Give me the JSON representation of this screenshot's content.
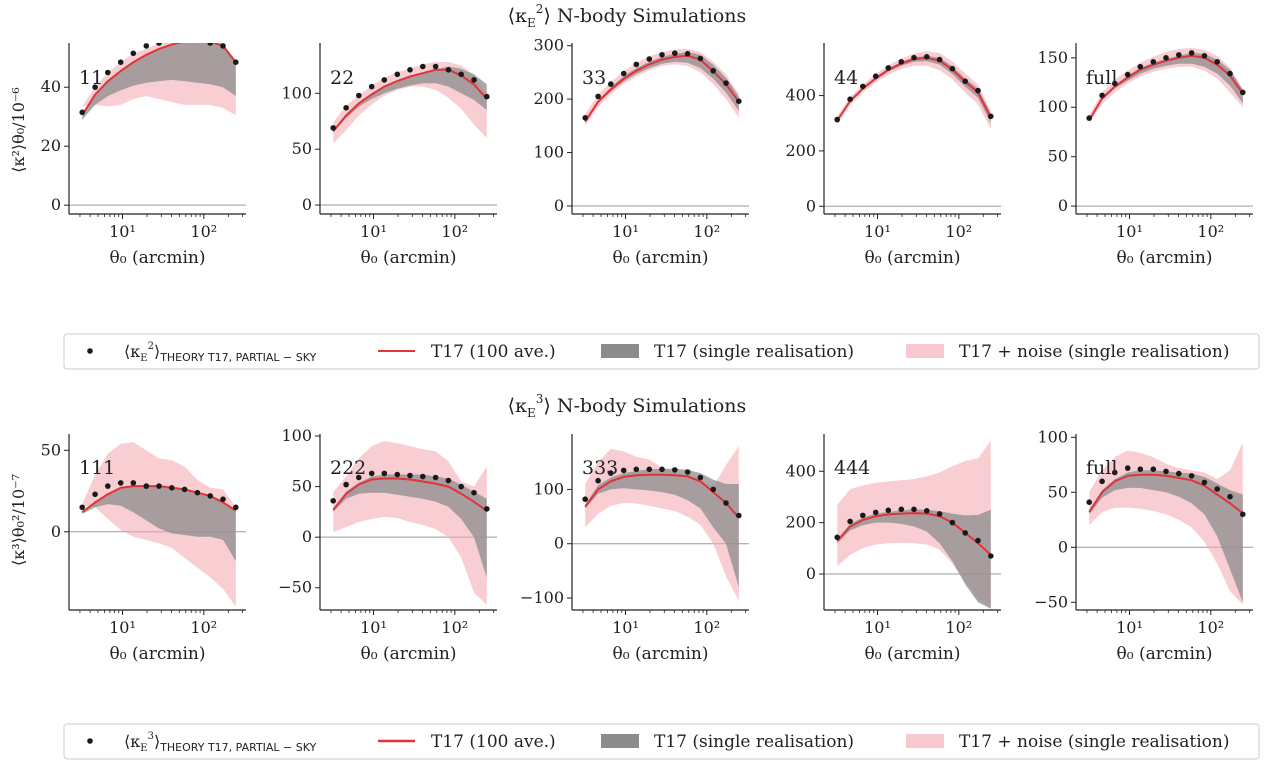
{
  "figure": {
    "rows": [
      {
        "title": "⟨κ_E²⟩  N-body Simulations",
        "title_main": "⟨κ",
        "title_sub": "E",
        "title_sup": "2",
        "title_rest": "⟩  N-body Simulations",
        "ylabel": "⟨κ²⟩θ₀/10⁻⁶",
        "legend": {
          "theory": "⟨κ_E²⟩THEORY T17, PARTIAL−SKY",
          "theory_label_parts": [
            "⟨κ",
            "E",
            "2",
            "⟩",
            "THEORY T17, PARTIAL − SKY"
          ],
          "mean": "T17 (100 ave.)",
          "single": "T17 (single realisation)",
          "noise": "T17 + noise (single realisation)"
        }
      },
      {
        "title": "⟨κ_E³⟩  N-body Simulations",
        "title_main": "⟨κ",
        "title_sub": "E",
        "title_sup": "3",
        "title_rest": "⟩  N-body Simulations",
        "ylabel": "⟨κ³⟩θ₀²/10⁻⁷",
        "legend": {
          "theory": "⟨κ_E³⟩THEORY T17, PARTIAL−SKY",
          "theory_label_parts": [
            "⟨κ",
            "E",
            "3",
            "⟩",
            "THEORY T17, PARTIAL − SKY"
          ],
          "mean": "T17 (100 ave.)",
          "single": "T17 (single realisation)",
          "noise": "T17 + noise (single realisation)"
        }
      }
    ],
    "xlabel": "θ₀ (arcmin)",
    "xtick_labels": [
      "10¹",
      "10²"
    ],
    "colors": {
      "mean_line": "#e0343a",
      "single_band": "#8c8c8c",
      "noise_band": "#f4a5ae",
      "theory_points": "#1a1a1a",
      "zero_line": "#9a9a9a"
    }
  },
  "chart_data": [
    {
      "type": "area",
      "row": 0,
      "panel": "11",
      "x": [
        3.2,
        4.6,
        6.6,
        9.5,
        13.6,
        19.6,
        28.1,
        40.4,
        58,
        83.3,
        119.7,
        172,
        247
      ],
      "x_scale": "log",
      "xlim": [
        2.2,
        330
      ],
      "ylim": [
        -3,
        55
      ],
      "yticks": [
        0,
        20,
        40
      ],
      "theory": [
        31.5,
        40,
        45,
        48.5,
        51.5,
        54,
        55,
        56.2,
        56.5,
        56.4,
        55,
        54,
        48.5
      ],
      "mean": [
        30.5,
        37.5,
        42,
        45.5,
        48.5,
        51,
        53,
        54.5,
        55.5,
        56,
        55.5,
        54,
        48.5
      ],
      "single_lo": [
        29,
        34,
        37,
        39,
        40.5,
        41.5,
        42,
        42.5,
        42,
        41.5,
        41,
        40,
        37
      ],
      "single_hi": [
        30,
        37.5,
        42,
        45.5,
        48.5,
        51,
        53,
        54.5,
        55.5,
        56,
        55.5,
        54,
        48.5
      ],
      "noise_lo": [
        33.5,
        34,
        33.5,
        34,
        36,
        37,
        36,
        35,
        34,
        34,
        34,
        33,
        30.5
      ],
      "noise_hi": [
        33.5,
        40,
        45,
        48.5,
        51.5,
        53,
        55,
        56.5,
        57.5,
        57,
        56,
        55,
        48.5
      ]
    },
    {
      "type": "area",
      "row": 0,
      "panel": "22",
      "x": [
        3.2,
        4.6,
        6.6,
        9.5,
        13.6,
        19.6,
        28.1,
        40.4,
        58,
        83.3,
        119.7,
        172,
        247
      ],
      "x_scale": "log",
      "xlim": [
        2.2,
        330
      ],
      "ylim": [
        -8,
        145
      ],
      "yticks": [
        0,
        50,
        100
      ],
      "theory": [
        69,
        87,
        98,
        106,
        112,
        117,
        121,
        124,
        124,
        121,
        117,
        112,
        97
      ],
      "mean": [
        66,
        80,
        91,
        99,
        106,
        111,
        115,
        118,
        121,
        121,
        116,
        108,
        95
      ],
      "single_lo": [
        65,
        78,
        88,
        95,
        100,
        104,
        107,
        109,
        109,
        106,
        100,
        94,
        85
      ],
      "single_hi": [
        67,
        81,
        92,
        100,
        106,
        111,
        115,
        118,
        121,
        124,
        122,
        117,
        108
      ],
      "noise_lo": [
        55,
        67,
        80,
        90,
        98,
        103,
        106,
        106,
        103,
        96,
        86,
        72,
        60
      ],
      "noise_hi": [
        74,
        89,
        98,
        107,
        114,
        119,
        122,
        126,
        128,
        128,
        125,
        116,
        98
      ]
    },
    {
      "type": "area",
      "row": 0,
      "panel": "33",
      "x": [
        3.2,
        4.6,
        6.6,
        9.5,
        13.6,
        19.6,
        28.1,
        40.4,
        58,
        83.3,
        119.7,
        172,
        247
      ],
      "x_scale": "log",
      "xlim": [
        2.2,
        330
      ],
      "ylim": [
        -15,
        305
      ],
      "yticks": [
        0,
        100,
        200,
        300
      ],
      "theory": [
        165,
        205,
        228,
        248,
        265,
        275,
        283,
        286,
        285,
        276,
        253,
        230,
        196
      ],
      "mean": [
        158,
        195,
        218,
        238,
        253,
        265,
        274,
        279,
        281,
        274,
        252,
        228,
        195
      ],
      "single_lo": [
        156,
        192,
        214,
        233,
        247,
        258,
        266,
        270,
        268,
        258,
        238,
        212,
        178
      ],
      "single_hi": [
        161,
        198,
        222,
        243,
        258,
        270,
        279,
        285,
        288,
        283,
        264,
        240,
        205
      ],
      "noise_lo": [
        150,
        185,
        208,
        228,
        242,
        254,
        262,
        265,
        262,
        250,
        228,
        200,
        165
      ],
      "noise_hi": [
        172,
        208,
        232,
        252,
        268,
        280,
        288,
        293,
        294,
        288,
        270,
        246,
        210
      ]
    },
    {
      "type": "area",
      "row": 0,
      "panel": "44",
      "x": [
        3.2,
        4.6,
        6.6,
        9.5,
        13.6,
        19.6,
        28.1,
        40.4,
        58,
        83.3,
        119.7,
        172,
        247
      ],
      "x_scale": "log",
      "xlim": [
        2.2,
        330
      ],
      "ylim": [
        -28,
        590
      ],
      "yticks": [
        0,
        200,
        400
      ],
      "theory": [
        313,
        387,
        433,
        470,
        500,
        522,
        537,
        540,
        530,
        497,
        452,
        418,
        325
      ],
      "mean": [
        310,
        380,
        425,
        462,
        493,
        516,
        532,
        536,
        526,
        494,
        450,
        412,
        322
      ],
      "single_lo": [
        306,
        376,
        420,
        456,
        486,
        508,
        522,
        524,
        512,
        478,
        432,
        392,
        300
      ],
      "single_hi": [
        313,
        385,
        430,
        467,
        498,
        522,
        538,
        544,
        536,
        506,
        462,
        425,
        335
      ],
      "noise_lo": [
        295,
        365,
        410,
        446,
        475,
        496,
        508,
        508,
        492,
        458,
        410,
        368,
        278
      ],
      "noise_hi": [
        325,
        395,
        440,
        478,
        510,
        534,
        552,
        560,
        554,
        524,
        480,
        440,
        345
      ]
    },
    {
      "type": "area",
      "row": 0,
      "panel": "full",
      "x": [
        3.2,
        4.6,
        6.6,
        9.5,
        13.6,
        19.6,
        28.1,
        40.4,
        58,
        83.3,
        119.7,
        172,
        247
      ],
      "x_scale": "log",
      "xlim": [
        2.2,
        330
      ],
      "ylim": [
        -8,
        165
      ],
      "yticks": [
        0,
        50,
        100,
        150
      ],
      "theory": [
        89,
        112,
        124,
        133,
        141,
        146,
        150,
        153,
        155,
        152,
        146,
        134,
        115
      ],
      "mean": [
        87,
        109,
        121,
        130,
        138,
        143,
        147,
        150,
        152,
        150,
        143,
        132,
        114
      ],
      "single_lo": [
        86,
        107,
        119,
        127,
        134,
        139,
        142,
        144,
        144,
        141,
        134,
        122,
        104
      ],
      "single_hi": [
        88,
        110,
        122,
        132,
        140,
        145,
        149,
        152,
        155,
        154,
        148,
        138,
        118
      ],
      "noise_lo": [
        84,
        103,
        115,
        124,
        131,
        136,
        139,
        141,
        141,
        137,
        129,
        115,
        100
      ],
      "noise_hi": [
        92,
        115,
        128,
        137,
        145,
        151,
        156,
        159,
        160,
        158,
        152,
        140,
        118
      ]
    },
    {
      "type": "area",
      "row": 1,
      "panel": "111",
      "x": [
        3.2,
        4.6,
        6.6,
        9.5,
        13.6,
        19.6,
        28.1,
        40.4,
        58,
        83.3,
        119.7,
        172,
        247
      ],
      "x_scale": "log",
      "xlim": [
        2.2,
        330
      ],
      "ylim": [
        -48,
        60
      ],
      "yticks": [
        0,
        50
      ],
      "theory": [
        15,
        23,
        28,
        30,
        30,
        28,
        28,
        27,
        26,
        24,
        22,
        20,
        15
      ],
      "mean": [
        12,
        18,
        23,
        27,
        28,
        28,
        28,
        27,
        26,
        24,
        22,
        18,
        13
      ],
      "single_lo": [
        11,
        15,
        17,
        16,
        12,
        7,
        2,
        -1,
        -2,
        -3,
        -3,
        -5,
        -18
      ],
      "single_hi": [
        12,
        18,
        23,
        27,
        28,
        28,
        28,
        27,
        26,
        24,
        22,
        18,
        13
      ],
      "noise_lo": [
        16,
        15,
        8,
        1,
        -3,
        -5,
        -7,
        -10,
        -16,
        -22,
        -28,
        -35,
        -46
      ],
      "noise_hi": [
        17,
        35,
        48,
        54,
        55,
        50,
        45,
        44,
        40,
        32,
        27,
        26,
        15
      ]
    },
    {
      "type": "area",
      "row": 1,
      "panel": "222",
      "x": [
        3.2,
        4.6,
        6.6,
        9.5,
        13.6,
        19.6,
        28.1,
        40.4,
        58,
        83.3,
        119.7,
        172,
        247
      ],
      "x_scale": "log",
      "xlim": [
        2.2,
        330
      ],
      "ylim": [
        -72,
        102
      ],
      "yticks": [
        -50,
        0,
        50,
        100
      ],
      "theory": [
        36,
        52,
        59,
        63,
        63,
        62,
        61,
        60,
        59,
        56,
        50,
        44,
        28
      ],
      "mean": [
        27,
        43,
        52,
        57,
        58,
        58,
        57,
        55,
        53,
        50,
        43,
        35,
        26
      ],
      "single_lo": [
        25,
        38,
        43,
        44,
        44,
        42,
        40,
        38,
        35,
        30,
        18,
        0,
        -40
      ],
      "single_hi": [
        28,
        45,
        54,
        60,
        62,
        62,
        62,
        62,
        60,
        58,
        52,
        45,
        38
      ],
      "noise_lo": [
        5,
        10,
        15,
        18,
        20,
        19,
        15,
        12,
        8,
        0,
        -20,
        -55,
        -67
      ],
      "noise_hi": [
        45,
        60,
        78,
        90,
        95,
        93,
        90,
        87,
        85,
        75,
        55,
        50,
        70
      ]
    },
    {
      "type": "area",
      "row": 1,
      "panel": "333",
      "x": [
        3.2,
        4.6,
        6.6,
        9.5,
        13.6,
        19.6,
        28.1,
        40.4,
        58,
        83.3,
        119.7,
        172,
        247
      ],
      "x_scale": "log",
      "xlim": [
        2.2,
        330
      ],
      "ylim": [
        -122,
        202
      ],
      "yticks": [
        -100,
        0,
        100
      ],
      "theory": [
        82,
        116,
        130,
        135,
        137,
        137,
        137,
        136,
        132,
        122,
        100,
        75,
        52
      ],
      "mean": [
        68,
        100,
        115,
        123,
        126,
        127,
        127,
        126,
        124,
        115,
        95,
        75,
        48
      ],
      "single_lo": [
        65,
        92,
        100,
        102,
        100,
        98,
        95,
        90,
        80,
        65,
        30,
        0,
        -80
      ],
      "single_hi": [
        72,
        108,
        122,
        130,
        134,
        137,
        138,
        138,
        136,
        130,
        118,
        110,
        110
      ],
      "noise_lo": [
        30,
        55,
        70,
        75,
        74,
        70,
        65,
        60,
        50,
        35,
        0,
        -60,
        -105
      ],
      "noise_hi": [
        110,
        150,
        175,
        170,
        160,
        155,
        140,
        130,
        125,
        115,
        105,
        145,
        180
      ]
    },
    {
      "type": "area",
      "row": 1,
      "panel": "444",
      "x": [
        3.2,
        4.6,
        6.6,
        9.5,
        13.6,
        19.6,
        28.1,
        40.4,
        58,
        83.3,
        119.7,
        172,
        247
      ],
      "x_scale": "log",
      "xlim": [
        2.2,
        330
      ],
      "ylim": [
        -140,
        545
      ],
      "yticks": [
        0,
        200,
        400
      ],
      "theory": [
        143,
        205,
        228,
        240,
        248,
        252,
        252,
        246,
        234,
        200,
        160,
        130,
        70
      ],
      "mean": [
        128,
        185,
        210,
        225,
        232,
        235,
        237,
        235,
        225,
        200,
        160,
        120,
        75
      ],
      "single_lo": [
        120,
        170,
        190,
        200,
        200,
        195,
        185,
        165,
        120,
        50,
        -40,
        -110,
        -135
      ],
      "single_hi": [
        135,
        195,
        220,
        235,
        242,
        248,
        252,
        250,
        245,
        235,
        228,
        230,
        250
      ],
      "noise_lo": [
        30,
        75,
        100,
        115,
        120,
        122,
        120,
        115,
        95,
        40,
        -30,
        -100,
        -130
      ],
      "noise_hi": [
        270,
        330,
        345,
        355,
        360,
        365,
        370,
        380,
        395,
        420,
        440,
        450,
        520
      ]
    },
    {
      "type": "area",
      "row": 1,
      "panel": "full",
      "x": [
        3.2,
        4.6,
        6.6,
        9.5,
        13.6,
        19.6,
        28.1,
        40.4,
        58,
        83.3,
        119.7,
        172,
        247
      ],
      "x_scale": "log",
      "xlim": [
        2.2,
        330
      ],
      "ylim": [
        -57,
        103
      ],
      "yticks": [
        -50,
        0,
        50,
        100
      ],
      "theory": [
        41,
        60,
        68,
        72,
        71,
        71,
        69,
        67,
        65,
        59,
        53,
        46,
        30
      ],
      "mean": [
        32,
        50,
        60,
        65,
        66,
        66,
        65,
        63,
        61,
        56,
        48,
        40,
        31
      ],
      "single_lo": [
        30,
        45,
        52,
        54,
        54,
        52,
        50,
        46,
        40,
        30,
        10,
        -20,
        -50
      ],
      "single_hi": [
        34,
        52,
        62,
        68,
        70,
        70,
        69,
        68,
        67,
        64,
        58,
        52,
        48
      ],
      "noise_lo": [
        20,
        32,
        36,
        36,
        35,
        33,
        30,
        25,
        18,
        5,
        -15,
        -40,
        -52
      ],
      "noise_hi": [
        50,
        70,
        82,
        88,
        86,
        82,
        76,
        72,
        70,
        68,
        62,
        70,
        95
      ]
    }
  ]
}
